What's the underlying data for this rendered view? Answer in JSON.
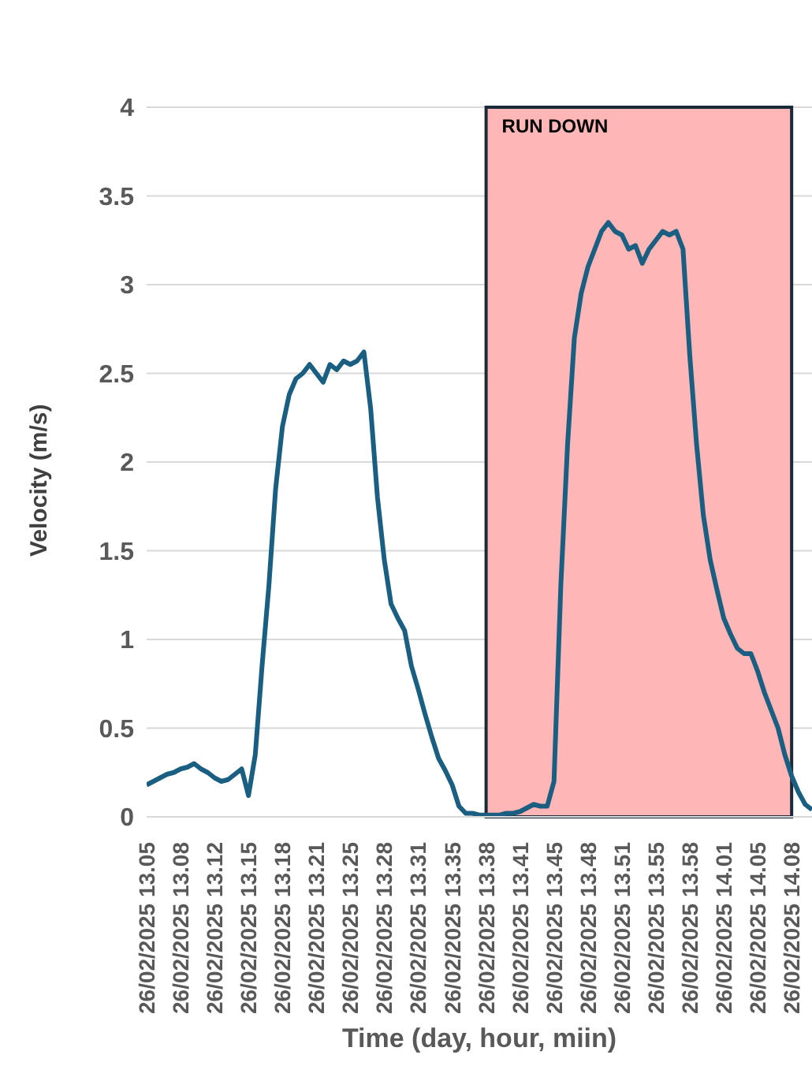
{
  "chart_data": {
    "type": "line",
    "xlabel": "Time (day, hour, miin)",
    "ylabel": "Velocity (m/s)",
    "categories": [
      "26/02/2025 13.05",
      null,
      null,
      null,
      null,
      "26/02/2025 13.08",
      null,
      null,
      null,
      null,
      "26/02/2025 13.12",
      null,
      null,
      null,
      null,
      "26/02/2025 13.15",
      null,
      null,
      null,
      null,
      "26/02/2025 13.18",
      null,
      null,
      null,
      null,
      "26/02/2025 13.21",
      null,
      null,
      null,
      null,
      "26/02/2025 13.25",
      null,
      null,
      null,
      null,
      "26/02/2025 13.28",
      null,
      null,
      null,
      null,
      "26/02/2025 13.31",
      null,
      null,
      null,
      null,
      "26/02/2025 13.35",
      null,
      null,
      null,
      null,
      "26/02/2025 13.38",
      null,
      null,
      null,
      null,
      "26/02/2025 13.41",
      null,
      null,
      null,
      null,
      "26/02/2025 13.45",
      null,
      null,
      null,
      null,
      "26/02/2025 13.48",
      null,
      null,
      null,
      null,
      "26/02/2025 13.51",
      null,
      null,
      null,
      null,
      "26/02/2025 13.55",
      null,
      null,
      null,
      null,
      "26/02/2025 13.58",
      null,
      null,
      null,
      null,
      "26/02/2025 14.01",
      null,
      null,
      null,
      null,
      "26/02/2025 14.05",
      null,
      null,
      null,
      null,
      "26/02/2025 14.08",
      null,
      null,
      null
    ],
    "series": [
      {
        "color": "#1a5f82",
        "values": [
          0.18,
          0.2,
          0.22,
          0.24,
          0.25,
          0.27,
          0.28,
          0.3,
          0.27,
          0.25,
          0.22,
          0.2,
          0.21,
          0.24,
          0.27,
          0.12,
          0.35,
          0.85,
          1.3,
          1.85,
          2.2,
          2.38,
          2.47,
          2.5,
          2.55,
          2.5,
          2.45,
          2.55,
          2.52,
          2.57,
          2.55,
          2.57,
          2.62,
          2.3,
          1.8,
          1.45,
          1.2,
          1.12,
          1.05,
          0.85,
          0.72,
          0.58,
          0.45,
          0.33,
          0.26,
          0.18,
          0.06,
          0.02,
          0.02,
          0.01,
          0.01,
          0.01,
          0.01,
          0.02,
          0.02,
          0.03,
          0.05,
          0.07,
          0.06,
          0.06,
          0.2,
          1.3,
          2.1,
          2.7,
          2.95,
          3.1,
          3.2,
          3.3,
          3.35,
          3.3,
          3.28,
          3.2,
          3.22,
          3.12,
          3.2,
          3.25,
          3.3,
          3.28,
          3.3,
          3.2,
          2.6,
          2.1,
          1.7,
          1.45,
          1.28,
          1.12,
          1.03,
          0.95,
          0.92,
          0.92,
          0.82,
          0.7,
          0.6,
          0.5,
          0.35,
          0.23,
          0.14,
          0.07,
          0.04
        ]
      }
    ],
    "ylim": [
      0,
      4
    ],
    "yticks": [
      0,
      0.5,
      1,
      1.5,
      2,
      2.5,
      3,
      3.5,
      4
    ],
    "grid": "y",
    "marker": "none",
    "line_style": "solid",
    "bands": [
      {
        "axis": "x",
        "from": "26/02/2025 13.38",
        "to": "26/02/2025 14.08",
        "label": "RUN DOWN",
        "color": "#ffb6b6"
      }
    ]
  }
}
